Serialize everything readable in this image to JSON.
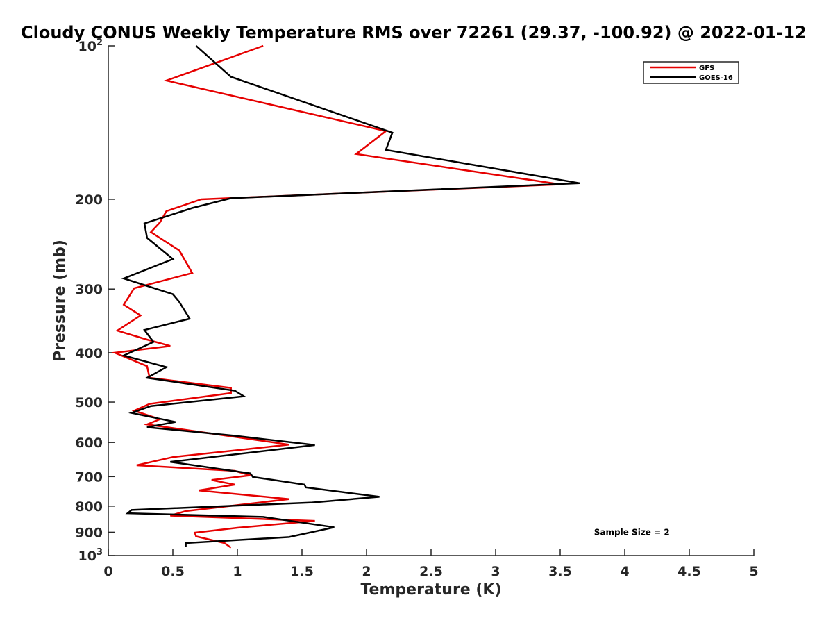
{
  "chart_data": {
    "type": "line",
    "title": "Cloudy CONUS Weekly Temperature RMS over 72261 (29.37, -100.92) @ 2022-01-12",
    "xlabel": "Temperature (K)",
    "ylabel": "Pressure (mb)",
    "xlim": [
      0,
      5
    ],
    "ylim": [
      100,
      1000
    ],
    "y_scale": "log",
    "y_reversed": true,
    "x_ticks": [
      {
        "value": 0,
        "label": "0"
      },
      {
        "value": 0.5,
        "label": "0.5"
      },
      {
        "value": 1,
        "label": "1"
      },
      {
        "value": 1.5,
        "label": "1.5"
      },
      {
        "value": 2,
        "label": "2"
      },
      {
        "value": 2.5,
        "label": "2.5"
      },
      {
        "value": 3,
        "label": "3"
      },
      {
        "value": 3.5,
        "label": "3.5"
      },
      {
        "value": 4,
        "label": "4"
      },
      {
        "value": 4.5,
        "label": "4.5"
      },
      {
        "value": 5,
        "label": "5"
      }
    ],
    "y_ticks": [
      {
        "value": 100,
        "base": "10",
        "sup": "2"
      },
      {
        "value": 200,
        "label": "200"
      },
      {
        "value": 300,
        "label": "300"
      },
      {
        "value": 400,
        "label": "400"
      },
      {
        "value": 500,
        "label": "500"
      },
      {
        "value": 600,
        "label": "600"
      },
      {
        "value": 700,
        "label": "700"
      },
      {
        "value": 800,
        "label": "800"
      },
      {
        "value": 900,
        "label": "900"
      },
      {
        "value": 1000,
        "base": "10",
        "sup": "3"
      }
    ],
    "grid": false,
    "legend_position": "top-right",
    "series": [
      {
        "name": "GFS",
        "color": "#e60000",
        "points": [
          [
            1.2,
            100
          ],
          [
            0.45,
            117
          ],
          [
            2.15,
            147
          ],
          [
            1.92,
            163
          ],
          [
            3.5,
            187
          ],
          [
            0.72,
            200
          ],
          [
            0.45,
            211
          ],
          [
            0.4,
            222
          ],
          [
            0.33,
            232
          ],
          [
            0.55,
            252
          ],
          [
            0.65,
            279
          ],
          [
            0.2,
            299
          ],
          [
            0.12,
            322
          ],
          [
            0.25,
            338
          ],
          [
            0.07,
            362
          ],
          [
            0.3,
            377
          ],
          [
            0.48,
            388
          ],
          [
            0.05,
            400
          ],
          [
            0.3,
            425
          ],
          [
            0.32,
            448
          ],
          [
            0.95,
            469
          ],
          [
            0.95,
            480
          ],
          [
            0.32,
            504
          ],
          [
            0.2,
            520
          ],
          [
            0.4,
            540
          ],
          [
            0.3,
            553
          ],
          [
            0.92,
            582
          ],
          [
            1.4,
            606
          ],
          [
            0.5,
            641
          ],
          [
            0.22,
            665
          ],
          [
            0.98,
            682
          ],
          [
            1.1,
            696
          ],
          [
            0.8,
            711
          ],
          [
            0.98,
            726
          ],
          [
            0.7,
            745
          ],
          [
            1.4,
            775
          ],
          [
            0.6,
            818
          ],
          [
            0.48,
            835
          ],
          [
            1.6,
            855
          ],
          [
            1.0,
            882
          ],
          [
            0.67,
            902
          ],
          [
            0.68,
            917
          ],
          [
            0.9,
            945
          ],
          [
            0.95,
            965
          ]
        ]
      },
      {
        "name": "GOES-16",
        "color": "#000000",
        "points": [
          [
            0.68,
            100
          ],
          [
            0.95,
            115
          ],
          [
            2.2,
            148
          ],
          [
            2.15,
            160
          ],
          [
            3.65,
            186
          ],
          [
            0.95,
            199
          ],
          [
            0.65,
            208
          ],
          [
            0.28,
            223
          ],
          [
            0.3,
            238
          ],
          [
            0.5,
            262
          ],
          [
            0.12,
            286
          ],
          [
            0.5,
            307
          ],
          [
            0.55,
            318
          ],
          [
            0.63,
            343
          ],
          [
            0.28,
            361
          ],
          [
            0.35,
            381
          ],
          [
            0.12,
            405
          ],
          [
            0.45,
            427
          ],
          [
            0.3,
            448
          ],
          [
            0.98,
            475
          ],
          [
            1.05,
            487
          ],
          [
            0.33,
            509
          ],
          [
            0.18,
            525
          ],
          [
            0.52,
            547
          ],
          [
            0.3,
            560
          ],
          [
            0.98,
            582
          ],
          [
            1.6,
            607
          ],
          [
            0.48,
            655
          ],
          [
            1.1,
            690
          ],
          [
            1.12,
            701
          ],
          [
            1.52,
            726
          ],
          [
            1.53,
            735
          ],
          [
            2.1,
            767
          ],
          [
            1.58,
            787
          ],
          [
            0.18,
            814
          ],
          [
            0.15,
            826
          ],
          [
            1.2,
            840
          ],
          [
            1.75,
            880
          ],
          [
            1.4,
            920
          ],
          [
            0.6,
            945
          ],
          [
            0.6,
            962
          ]
        ]
      }
    ],
    "annotations": [
      {
        "text": "Sample Size = 2",
        "x": 4.3,
        "y": 900
      }
    ]
  }
}
